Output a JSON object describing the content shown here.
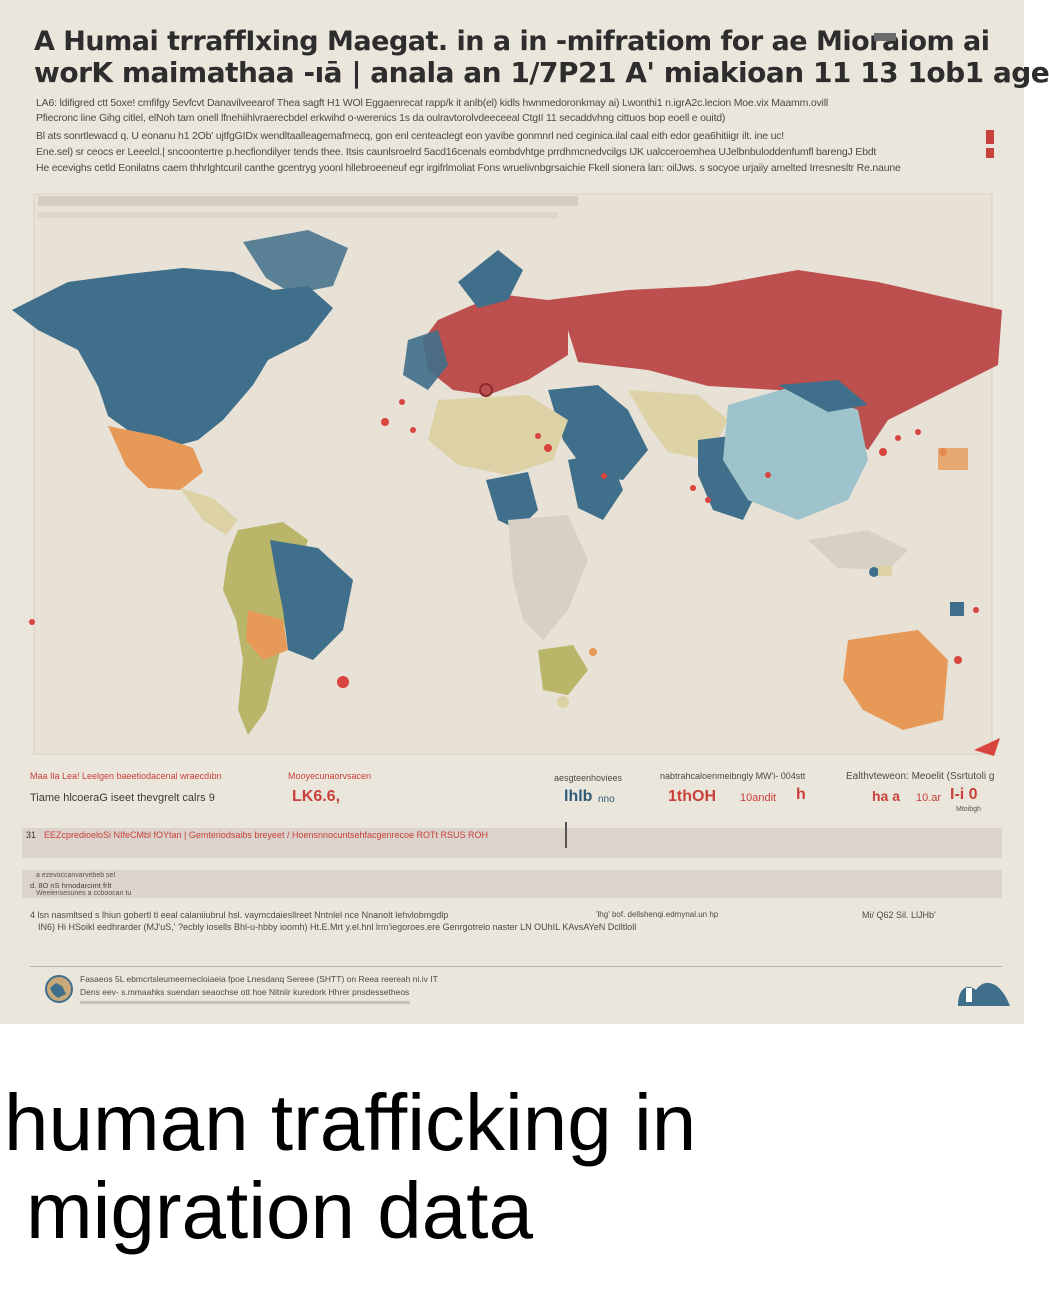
{
  "poster": {
    "title_line1": "A Humai trraffIxing Maegat. in a in -mifratiom for ae Mioraiom ai",
    "title_line2": "worK maimathaa -ıā  |  anala an 1/7P21 A' miakioan  11 13 1ob1 age",
    "intro_lines": [
      "LA6: ldifigred ctt 5oxe! cmfifgy 5evfcvt Danavilveearof Thea sagft H1 WOl Eggaenrecat rapp/k it anlb(el) kidls hwnmedoronkmay ai) Lwonthi1 n.igrA2c.lecion Moe.vix Maamm.ovill",
      "Pfiecronc line Gihg citlel, elNoh tam onell lfnehiihlvraerecbdel erkwihd o-werenics 1s da oulravtorolvdeeceeal CtgII 11 secaddvhng cittuos bop eoell e ouitd)",
      "Bl ats sonrtlewacd q. U eonanu h1 2Ob' ujtfgGIDx wendltaalleagemafrnecq, gon enl centeaclegt eon yavibe gonmnrl ned ceginica.ilal caal eith edor gea6hitiigr ilt. ine uc!",
      "Ene.sel) sr ceocs er Leeelcl.| sncoontertre p.hecfiondilyer  tends thee. Itsis caunlsroelrd 5acd16cenals eombdvhtge prrdhmcnedvcilgs  IJK ualcceroemhea  UJelbnbuloddenfumfl barengJ Ebdt",
      "He ecevighs cetld Eonilatns  caem thhrlghtcuril canthe gcentryg yoonl hllebroeeneuf egr irgifrlmoliat  Fons wruelivnbgrsaichie Fkell sionera lan: oilJws. s socyoe urjaiiy amelted Irresnesltr Re.naune"
    ],
    "stats": {
      "col1_label": "Maa Ila Lea! Leelgen baeetiodacenal wraecdıbn",
      "col1_sub": "Tiame hlcoeraG iseet thevgrelt calrs 9",
      "col2_label": "Mooyecunaorvsacen",
      "col2_value": "LK6.6,",
      "col3_label": "aesgteenhoviees",
      "col3_value": "lhlb",
      "col3_unit": "nno",
      "col4_label": "nabtrahcaloenmeibngly  MW'i- 004stt",
      "col4_value": "1thOH",
      "col4_mid": "10andit",
      "col4_end": "h",
      "col5_label": "Ealthvteweon:  Meoelit (Ssrtutoli g",
      "col5_value": "ha a",
      "col5_mid": "10.ar",
      "col5_end": "I-i 0",
      "col5_note": "Mtoibgh"
    },
    "bar1_prefix": "31",
    "bar1_text": "EEZcpredioeloSi  NIfeCMbl fOYtan | Gemteriodsaibs breyeet / Hoensnnocuntsehfacgenrecoe  ROTt RSUS ROH",
    "bar2_lines": [
      "a ezevoccanvarvebeb sel",
      "d. 8O nS  hmodarcimt frlt",
      "Weelensesunes a ccboocan tu"
    ],
    "note_lines": [
      "4  lsn nasmltsed s  lhiun gobertl tl eeal calaniiubrul hsl.  vaymcdaiesllreet  Nntnlel nce Nnanolt lehvlobmgdlp",
      "IN6) Hi HSoikl eedhrarder (MJ'uS,' ?ecbly  iosells Bhl-u-hbby ioomh) Ht.E.Mrt  y.el.hnl  lrm'iegoroes.ere  Genrgotrelo  naster LN OUhIL KAvsAYeN Dclltloll"
    ],
    "note_right": "Mi/  Q62  Sil.  LlJHb'",
    "note_mid": "'lhg'  bof. dellshenqi.edmynal.un hp",
    "footer_lines": [
      "Fasaeos  5L  ebmcrtsleumeernecloiaeia  fpoe  Lnesdanq Sereee (SHTT) on Reea  reereah  ni.iv IT",
      "Dens  eev-  s.mmaahks  suendan seaochse  ott hoe  Nitniir  kuredork  Hhrer  pnsdessetheos"
    ],
    "colors": {
      "blue": "#3f6f8a",
      "red": "#bd4f4e",
      "orange": "#e79a58",
      "olive": "#b9b66a",
      "lightblue": "#9ec3ca",
      "sand": "#ddd2a6",
      "background": "#ebe6dc"
    },
    "icons": [
      "globe-icon",
      "logo-icon"
    ]
  },
  "caption": {
    "line1": "human trafficking in",
    "line2": "migration data"
  }
}
